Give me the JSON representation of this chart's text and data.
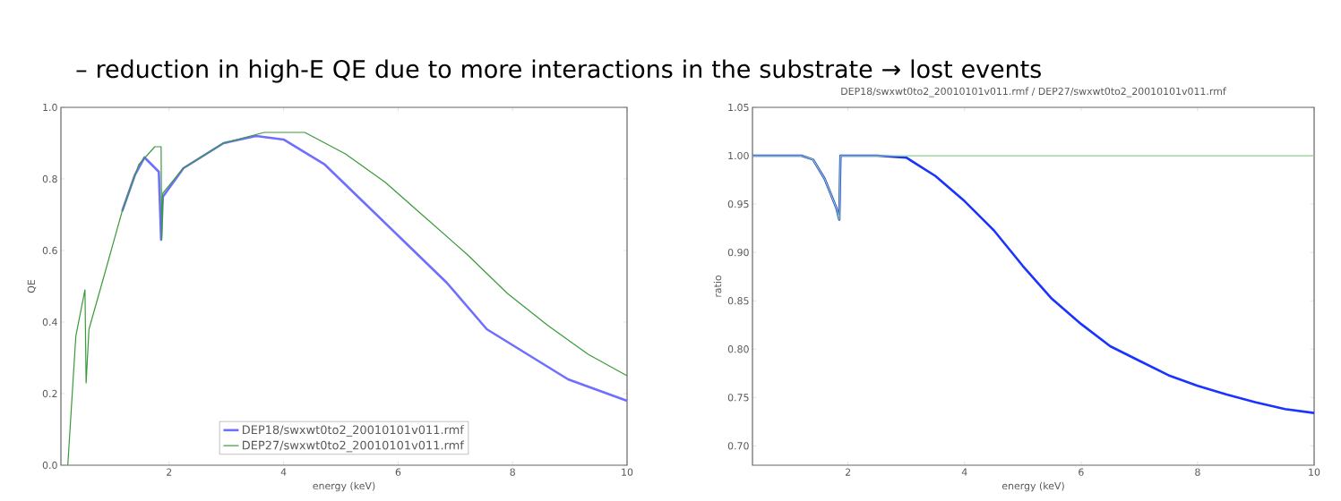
{
  "chart_data": [
    {
      "type": "line",
      "xlabel": "energy (keV)",
      "ylabel": "QE",
      "annotations": [
        "– reduction in high-E QE due to more interactions in the substrate → lost events"
      ],
      "xlim": [
        0.11,
        10
      ],
      "ylim": [
        0,
        1
      ],
      "xticks": [
        2,
        4,
        6,
        8,
        10
      ],
      "yticks": [
        {
          "value": 0,
          "label": "0.0"
        },
        {
          "value": 0.2,
          "label": "0.2"
        },
        {
          "value": 0.4,
          "label": "0.4"
        },
        {
          "value": 0.6,
          "label": "0.6"
        },
        {
          "value": 0.8,
          "label": "0.8"
        },
        {
          "value": 1,
          "label": "1.0"
        }
      ],
      "legend": "bottom",
      "marker": "none",
      "line_style": "solid",
      "series": [
        {
          "name": "DEP18/swxwt0to2_20010101v011.rmf",
          "color": "#6f6fff",
          "x": [
            1.18,
            1.4,
            1.57,
            1.82,
            1.86,
            1.89,
            2.25,
            2.95,
            3.52,
            4.0,
            4.72,
            5.43,
            6.14,
            6.85,
            7.55,
            8.26,
            8.97,
            10
          ],
          "values": [
            0.71,
            0.81,
            0.86,
            0.82,
            0.63,
            0.75,
            0.83,
            0.9,
            0.92,
            0.91,
            0.84,
            0.73,
            0.62,
            0.51,
            0.38,
            0.31,
            0.24,
            0.18
          ]
        },
        {
          "name": "DEP27/swxwt0to2_20010101v011.rmf",
          "color": "#3a9a3a",
          "x": [
            0.23,
            0.37,
            0.53,
            0.55,
            0.6,
            0.83,
            1.18,
            1.47,
            1.75,
            1.86,
            1.87,
            1.89,
            2.25,
            2.95,
            3.66,
            4.37,
            5.08,
            5.78,
            6.49,
            7.2,
            7.91,
            8.62,
            9.32,
            10
          ],
          "values": [
            0,
            0.36,
            0.49,
            0.23,
            0.38,
            0.51,
            0.71,
            0.84,
            0.89,
            0.89,
            0.63,
            0.76,
            0.83,
            0.9,
            0.93,
            0.93,
            0.87,
            0.79,
            0.69,
            0.59,
            0.48,
            0.39,
            0.31,
            0.25
          ]
        }
      ]
    },
    {
      "type": "line",
      "title": "DEP18/swxwt0to2_20010101v011.rmf / DEP27/swxwt0to2_20010101v011.rmf",
      "xlabel": "energy (keV)",
      "ylabel": "ratio",
      "xlim": [
        0.36,
        10
      ],
      "ylim": [
        0.68,
        1.05
      ],
      "xticks": [
        2,
        4,
        6,
        8,
        10
      ],
      "yticks": [
        {
          "value": 0.7,
          "label": "0.70"
        },
        {
          "value": 0.75,
          "label": "0.75"
        },
        {
          "value": 0.8,
          "label": "0.80"
        },
        {
          "value": 0.85,
          "label": "0.85"
        },
        {
          "value": 0.9,
          "label": "0.90"
        },
        {
          "value": 0.95,
          "label": "0.95"
        },
        {
          "value": 1.0,
          "label": "1.00"
        },
        {
          "value": 1.05,
          "label": "1.05"
        }
      ],
      "marker": "none",
      "line_style": "solid",
      "series": [
        {
          "color": "#1a33ff",
          "x": [
            0.36,
            1.2,
            1.4,
            1.6,
            1.8,
            1.85,
            1.87,
            2.5,
            3.0,
            3.5,
            4.0,
            4.5,
            5.0,
            5.5,
            6.0,
            6.5,
            7.0,
            7.5,
            8.0,
            8.5,
            9.0,
            9.5,
            10
          ],
          "values": [
            1.0,
            1.0,
            0.996,
            0.976,
            0.946,
            0.934,
            1.0,
            1.0,
            0.998,
            0.979,
            0.953,
            0.923,
            0.886,
            0.852,
            0.826,
            0.803,
            0.788,
            0.773,
            0.762,
            0.753,
            0.745,
            0.738,
            0.734
          ]
        },
        {
          "color": "#90d090",
          "x": [
            0.36,
            1.2,
            1.4,
            1.6,
            1.8,
            1.85,
            1.87,
            10
          ],
          "values": [
            1.0,
            1.0,
            0.996,
            0.976,
            0.946,
            0.934,
            1.0,
            1.0
          ]
        }
      ]
    }
  ]
}
